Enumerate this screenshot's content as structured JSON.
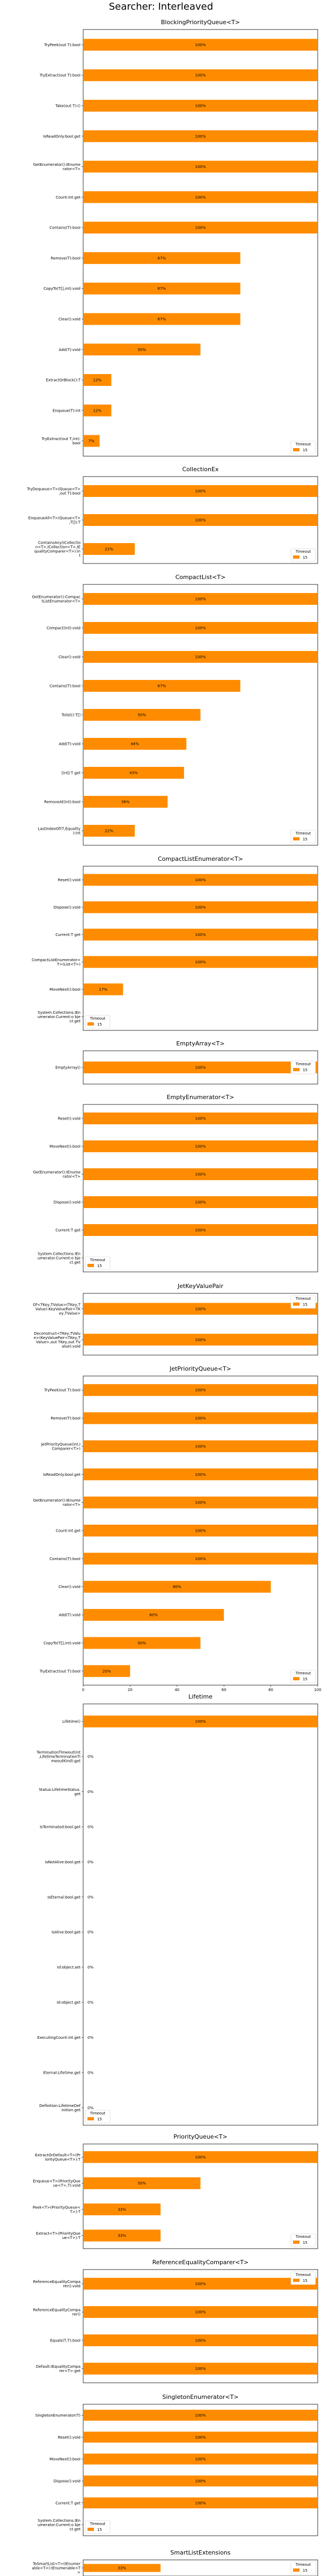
{
  "figure": {
    "title": "Searcher: Interleaved"
  },
  "chart_data": [
    {
      "type": "bar",
      "orientation": "horizontal",
      "title": "BlockingPriorityQueue<T>",
      "categories": [
        "TryPeek(out T):bool",
        "TryExtract(out T):bool",
        "Take(out T):()",
        "IsReadOnly:bool.get",
        "GetEnumerator():IEnumerator<T>",
        "Count:int.get",
        "Contains(T):bool",
        "Remove(T):bool",
        "CopyTo(T[],int):void",
        "Clear():void",
        "Add(T):void",
        "ExtractOrBlock():T",
        "Enqueue(T):int",
        "TryExtract(out T,int):bool"
      ],
      "values": [
        100,
        100,
        100,
        100,
        100,
        100,
        100,
        67,
        67,
        67,
        50,
        12,
        12,
        7
      ],
      "value_labels": [
        "100%",
        "100%",
        "100%",
        "100%",
        "100%",
        "100%",
        "100%",
        "67%",
        "67%",
        "67%",
        "50%",
        "12%",
        "12%",
        "7%"
      ],
      "xlim": [
        0,
        100
      ],
      "legend": {
        "title": "Timeout",
        "entries": [
          "15"
        ],
        "position": "bottom-right"
      }
    },
    {
      "type": "bar",
      "orientation": "horizontal",
      "title": "CollectionEx",
      "categories": [
        "TryDequeue<T>(Queue<T>,out T):bool",
        "EnqueueAll<T>(Queue<T>,T[]):T",
        "ContainsAny(ICollection<T>,ICollection<T>,IEqualityComparer<T>):int"
      ],
      "values": [
        100,
        100,
        22
      ],
      "value_labels": [
        "100%",
        "100%",
        "22%"
      ],
      "xlim": [
        0,
        100
      ],
      "legend": {
        "title": "Timeout",
        "entries": [
          "15"
        ],
        "position": "bottom-right"
      }
    },
    {
      "type": "bar",
      "orientation": "horizontal",
      "title": "CompactList<T>",
      "categories": [
        "GetEnumerator():CompactListEnumerator<T>",
        "Compact(int):void",
        "Clear():void",
        "Contains(T):bool",
        "Tolist():T[]",
        "Add(T):void",
        "[int]:T get",
        "RemoveAt(int):bool",
        "LastIndexOf(T,Equality):int"
      ],
      "values": [
        100,
        100,
        100,
        67,
        50,
        44,
        43,
        36,
        22
      ],
      "value_labels": [
        "100%",
        "100%",
        "100%",
        "67%",
        "50%",
        "44%",
        "43%",
        "36%",
        "22%"
      ],
      "xlim": [
        0,
        100
      ],
      "legend": {
        "title": "Timeout",
        "entries": [
          "15"
        ],
        "position": "bottom-right"
      }
    },
    {
      "type": "bar",
      "orientation": "horizontal",
      "title": "CompactListEnumerator<T>",
      "categories": [
        "Reset():void",
        "Dispose():void",
        "Current:T get",
        "CompactListEnumerator<T>(List<T>)",
        "MoveNext():bool",
        "System.Collections.IEnumerator.Current:o bject.get"
      ],
      "values": [
        100,
        100,
        100,
        100,
        17,
        0
      ],
      "value_labels": [
        "100%",
        "100%",
        "100%",
        "100%",
        "17%",
        ""
      ],
      "xlim": [
        0,
        100
      ],
      "legend": {
        "title": "Timeout",
        "entries": [
          "15"
        ],
        "position": "bottom-left"
      }
    },
    {
      "type": "bar",
      "orientation": "horizontal",
      "title": "EmptyArray<T>",
      "categories": [
        "EmptyArray()"
      ],
      "values": [
        100
      ],
      "value_labels": [
        "100%"
      ],
      "xlim": [
        0,
        100
      ],
      "legend": {
        "title": "Timeout",
        "entries": [
          "15"
        ],
        "position": "right"
      }
    },
    {
      "type": "bar",
      "orientation": "horizontal",
      "title": "EmptyEnumerator<T>",
      "categories": [
        "Reset():void",
        "MoveNext():bool",
        "GetEnumerator():IEnumerator<T>",
        "Dispose():void",
        "Current:T get",
        "System.Collections.IEnumerator.Current:o bject.get"
      ],
      "values": [
        100,
        100,
        100,
        100,
        100,
        0
      ],
      "value_labels": [
        "100%",
        "100%",
        "100%",
        "100%",
        "100%",
        ""
      ],
      "xlim": [
        0,
        100
      ],
      "legend": {
        "title": "Timeout",
        "entries": [
          "15"
        ],
        "position": "bottom-left"
      }
    },
    {
      "type": "bar",
      "orientation": "horizontal",
      "title": "JetKeyValuePair",
      "categories": [
        "Of<TKey,TValue>(TKey,TValue):KeyValuePair<TKey,TValue>",
        "Deconstruct<TKey,TValue>(KeyValuePair<TKey,TValue>,out TKey,out TValue):void"
      ],
      "values": [
        100,
        100
      ],
      "value_labels": [
        "100%",
        "100%"
      ],
      "xlim": [
        0,
        100
      ],
      "legend": {
        "title": "Timeout",
        "entries": [
          "15"
        ],
        "position": "top-right"
      }
    },
    {
      "type": "bar",
      "orientation": "horizontal",
      "title": "JetPriorityQueue<T>",
      "categories": [
        "TryPeek(out T):bool",
        "Remove(T):bool",
        "JetPriorityQueue(int,IComparer<T>)",
        "IsReadOnly:bool.get",
        "GetEnumerator():IEnumerator<T>",
        "Count:int.get",
        "Contains(T):bool",
        "Clear():void",
        "Add(T):void",
        "CopyTo(T[],int):void",
        "TryExtract(out T):bool"
      ],
      "values": [
        100,
        100,
        100,
        100,
        100,
        100,
        100,
        80,
        60,
        50,
        20
      ],
      "value_labels": [
        "100%",
        "100%",
        "100%",
        "100%",
        "100%",
        "100%",
        "100%",
        "80%",
        "60%",
        "50%",
        "20%"
      ],
      "xlim": [
        0,
        100
      ],
      "legend": {
        "title": "Timeout",
        "entries": [
          "15"
        ],
        "position": "bottom-right"
      }
    },
    {
      "type": "bar",
      "orientation": "horizontal",
      "title": "Lifetime",
      "categories": [
        "Lifetime()",
        "TerminationTimeout(int,LifetimeTerminationTimeoutKind):get",
        "Status:LifetimeStatus.get",
        "IsTerminated:bool.get",
        "IsNotAlive:bool.get",
        "IsEternal:bool.get",
        "IsAlive:bool.get",
        "Id:object.set",
        "Id:object.get",
        "ExecutingCount:int.get",
        "Eternal:Lifetime.get",
        "Definition:LifetimeDefinition.get"
      ],
      "values": [
        100,
        0,
        0,
        0,
        0,
        0,
        0,
        0,
        0,
        0,
        0,
        0
      ],
      "value_labels": [
        "100%",
        "0%",
        "0%",
        "0%",
        "0%",
        "0%",
        "0%",
        "0%",
        "0%",
        "0%",
        "0%",
        "0%"
      ],
      "xlim": [
        0,
        100
      ],
      "legend": {
        "title": "Timeout",
        "entries": [
          "15"
        ],
        "position": "bottom-left"
      }
    },
    {
      "type": "bar",
      "orientation": "horizontal",
      "title": "PriorityQueue<T>",
      "categories": [
        "ExtractOrDefault<T>(PriorityQueue<T>):T",
        "Enqueue<T>(PriorityQueue<T>,T):void",
        "Peek<T>(PriorityQueue<T>):T",
        "Extract<T>(PriorityQueue<T>):T"
      ],
      "values": [
        100,
        50,
        33,
        33
      ],
      "value_labels": [
        "100%",
        "50%",
        "33%",
        "33%"
      ],
      "xlim": [
        0,
        100
      ],
      "legend": {
        "title": "Timeout",
        "entries": [
          "15"
        ],
        "position": "bottom-right"
      }
    },
    {
      "type": "bar",
      "orientation": "horizontal",
      "title": "ReferenceEqualityComparer<T>",
      "categories": [
        "ReferenceEqualityComparer():void",
        "ReferenceEqualityComparer()",
        "Equals(T,T):bool",
        "Default:IEqualityComparer<T>.get"
      ],
      "values": [
        100,
        100,
        100,
        100
      ],
      "value_labels": [
        "100%",
        "100%",
        "100%",
        "100%"
      ],
      "xlim": [
        0,
        100
      ],
      "legend": {
        "title": "Timeout",
        "entries": [
          "15"
        ],
        "position": "top-right"
      }
    },
    {
      "type": "bar",
      "orientation": "horizontal",
      "title": "SingletonEnumerator<T>",
      "categories": [
        "SingletonEnumerator(T)",
        "Reset():void",
        "MoveNext():bool",
        "Dispose():void",
        "Current:T get",
        "System.Collections.IEnumerator.Current:o bject.get"
      ],
      "values": [
        100,
        100,
        100,
        100,
        100,
        0
      ],
      "value_labels": [
        "100%",
        "100%",
        "100%",
        "100%",
        "100%",
        ""
      ],
      "xlim": [
        0,
        100
      ],
      "legend": {
        "title": "Timeout",
        "entries": [
          "15"
        ],
        "position": "bottom-left"
      }
    },
    {
      "type": "bar",
      "orientation": "horizontal",
      "title": "SmartListExtensions",
      "categories": [
        "ToSmartList<T>(IEnumerable<T>):IEnumerable<T>"
      ],
      "values": [
        33
      ],
      "value_labels": [
        "33%"
      ],
      "xlim": [
        0,
        100
      ],
      "legend": {
        "title": "Timeout",
        "entries": [
          "15"
        ],
        "position": "right"
      }
    }
  ],
  "colors": {
    "bar": "#ff8c00",
    "frame": "#000000"
  }
}
